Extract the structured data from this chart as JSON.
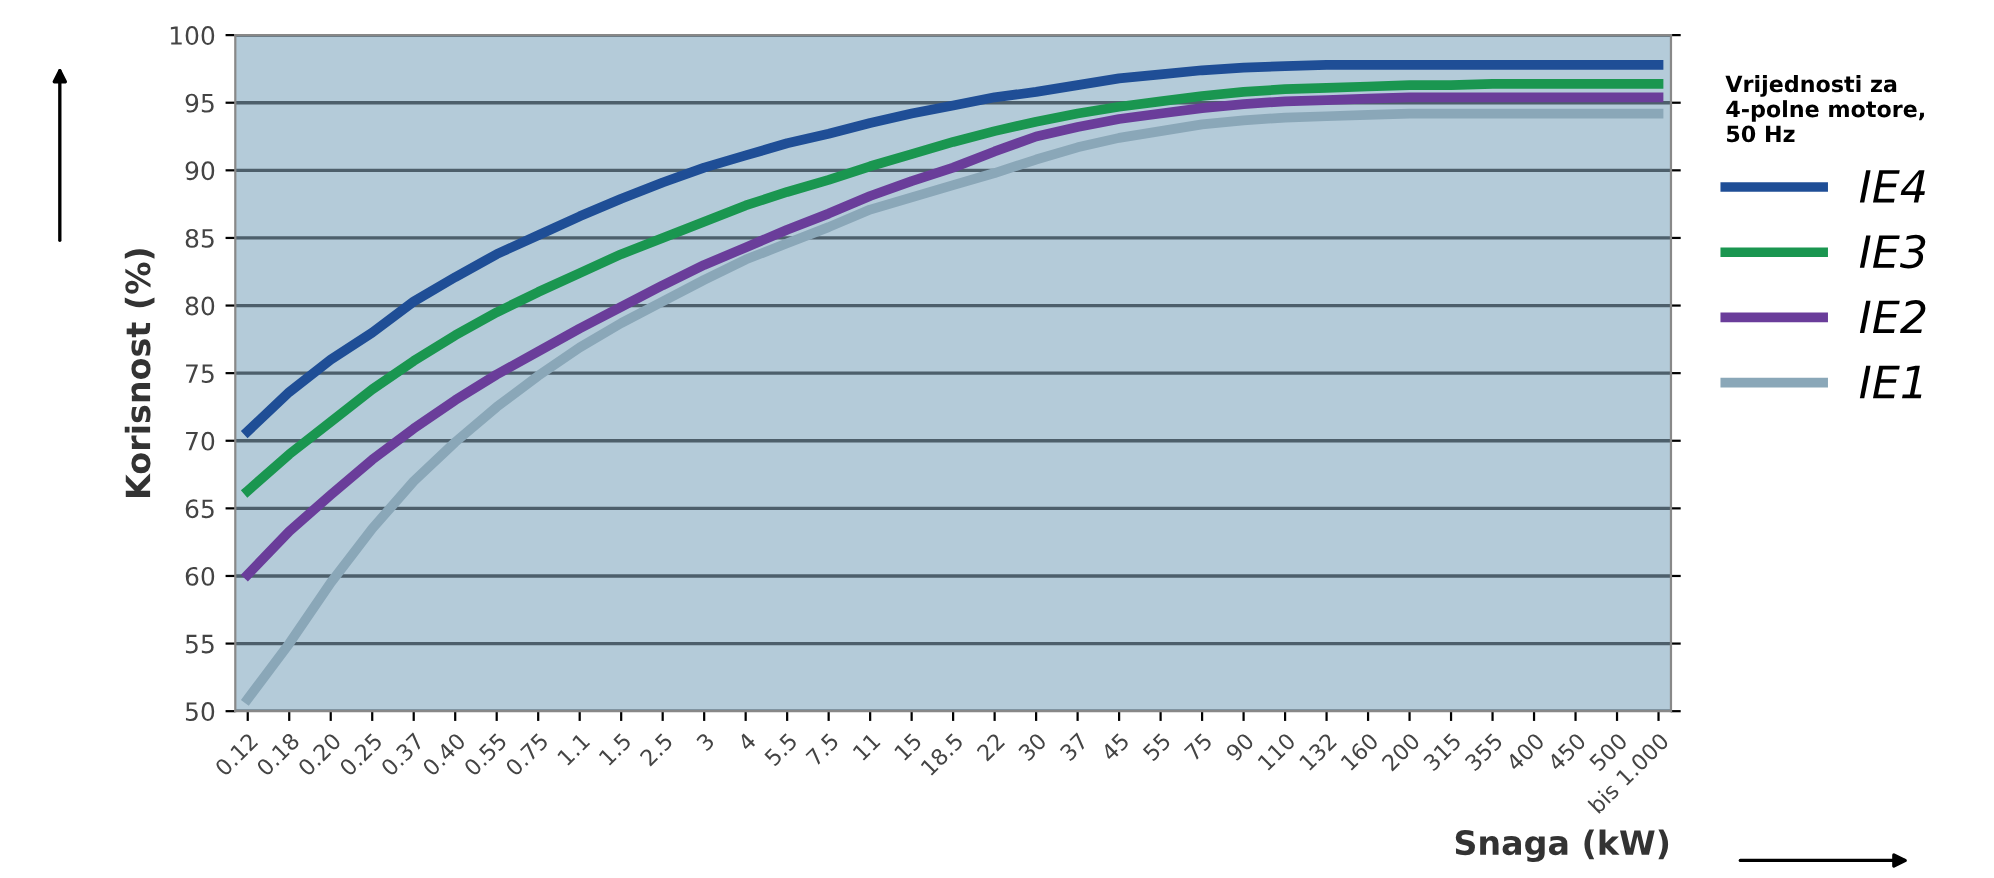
{
  "chart_data": {
    "type": "line",
    "xlabel": "Snaga (kW)",
    "ylabel": "Korisnost (%)",
    "legend_title": "Vrijednosti za\n4-polne motore,\n50 Hz",
    "categories": [
      "0.12",
      "0.18",
      "0.20",
      "0.25",
      "0.37",
      "0.40",
      "0.55",
      "0.75",
      "1.1",
      "1.5",
      "2.5",
      "3",
      "4",
      "5.5",
      "7.5",
      "11",
      "15",
      "18.5",
      "22",
      "30",
      "37",
      "45",
      "55",
      "75",
      "90",
      "110",
      "132",
      "160",
      "200",
      "315",
      "355",
      "400",
      "450",
      "500",
      "bis 1.000"
    ],
    "series": [
      {
        "name": "IE4",
        "color": "#1f4e96",
        "values": [
          70.7,
          73.6,
          76,
          78,
          80.3,
          82.1,
          83.8,
          85.2,
          86.6,
          87.9,
          89.1,
          90.2,
          91.1,
          92,
          92.7,
          93.5,
          94.2,
          94.8,
          95.4,
          95.8,
          96.3,
          96.8,
          97.1,
          97.4,
          97.6,
          97.7,
          97.8,
          97.8,
          97.8,
          97.8,
          97.8,
          97.8,
          97.8,
          97.8,
          97.8
        ]
      },
      {
        "name": "IE3",
        "color": "#1a9650",
        "values": [
          66.3,
          69,
          71.4,
          73.8,
          75.9,
          77.8,
          79.5,
          81,
          82.4,
          83.8,
          85,
          86.2,
          87.4,
          88.4,
          89.3,
          90.3,
          91.2,
          92.1,
          92.9,
          93.6,
          94.2,
          94.7,
          95.1,
          95.5,
          95.8,
          96,
          96.1,
          96.2,
          96.3,
          96.3,
          96.4,
          96.4,
          96.4,
          96.4,
          96.4
        ]
      },
      {
        "name": "IE2",
        "color": "#6a3d9a",
        "values": [
          60.1,
          63.3,
          66,
          68.6,
          70.9,
          73,
          74.9,
          76.6,
          78.3,
          79.9,
          81.5,
          83,
          84.3,
          85.6,
          86.8,
          88.1,
          89.2,
          90.2,
          91.4,
          92.5,
          93.2,
          93.8,
          94.2,
          94.6,
          94.9,
          95.1,
          95.2,
          95.3,
          95.4,
          95.4,
          95.4,
          95.4,
          95.4,
          95.4,
          95.4
        ]
      },
      {
        "name": "IE1",
        "color": "#8aa7b8",
        "values": [
          50.9,
          55,
          59.5,
          63.5,
          67,
          69.9,
          72.5,
          74.8,
          76.9,
          78.7,
          80.3,
          81.9,
          83.4,
          84.6,
          85.8,
          87.1,
          88,
          88.9,
          89.8,
          90.8,
          91.7,
          92.4,
          92.9,
          93.4,
          93.7,
          93.9,
          94,
          94.1,
          94.2,
          94.2,
          94.2,
          94.2,
          94.2,
          94.2,
          94.2
        ]
      }
    ],
    "ylim": [
      50,
      100
    ],
    "yticks": [
      50,
      55,
      60,
      65,
      70,
      75,
      80,
      85,
      90,
      95,
      100
    ],
    "grid": "y",
    "legend": "right",
    "marker": "none",
    "line_style": "solid"
  }
}
